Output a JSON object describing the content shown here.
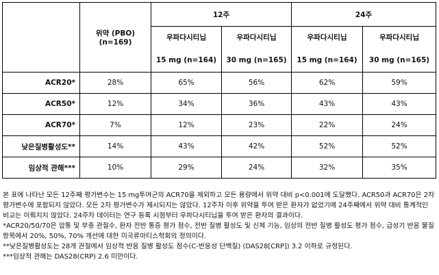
{
  "table": {
    "header": {
      "week12": "12주",
      "week24": "24주",
      "placebo": "위약 (PBO) (n=169)",
      "drug_name": "우파다시티닙",
      "dose15": "15 mg (n=164)",
      "dose30": "30 mg (n=165)"
    },
    "rows": [
      {
        "label": "ACR20*",
        "values": [
          "28%",
          "65%",
          "56%",
          "62%",
          "59%"
        ]
      },
      {
        "label": "ACR50*",
        "values": [
          "12%",
          "34%",
          "36%",
          "43%",
          "43%"
        ]
      },
      {
        "label": "ACR70*",
        "values": [
          "7%",
          "12%",
          "23%",
          "22%",
          "24%"
        ]
      },
      {
        "label": "낮은질병활성도**",
        "values": [
          "14%",
          "43%",
          "42%",
          "52%",
          "52%"
        ]
      },
      {
        "label": "임상적 관해***",
        "values": [
          "10%",
          "29%",
          "24%",
          "32%",
          "35%"
        ]
      }
    ]
  },
  "notes": [
    "본 표에 나타난 모든 12주째 평가변수는 15 mg투여군의 ACR70을 제외하고 모든 용량에서 위약 대비 p<0.001에 도달했다. ACR50과 ACR70은 2차 평가변수에 포함되지 않았다. 모든 2차 평가변수가 제시되지는 않았다. 12주차 이후 위약을 투여 받은 환자가 없었기에 24주째에서 위약 대비 통계적인 비교는 이뤄지지 않았다. 24주차 데이터는 연구 등록 시점부터 우파다시티닙을 투여 받은 환자의 결과이다.",
    "*ACR20/50/70은 압통 및 부종 관절수, 환자 전반 통증 평가 점수, 전반 질병 활성도 및 신체 기능, 임상의 전반 질병 활성도 평가 점수, 급성기 반응 물질 항목에서 20%, 50%, 70% 개선에 대한 미국류마티스학회의 정의이다.",
    "**낮은질병활성도는 28개 관절에서 임상적 반응 질병 활성도 점수(C-반응성 단백질) (DAS28[CRP]) 3.2 이하로 규정된다.",
    "***임상적 관해는 DAS28(CRP) 2.6 미만이다."
  ]
}
